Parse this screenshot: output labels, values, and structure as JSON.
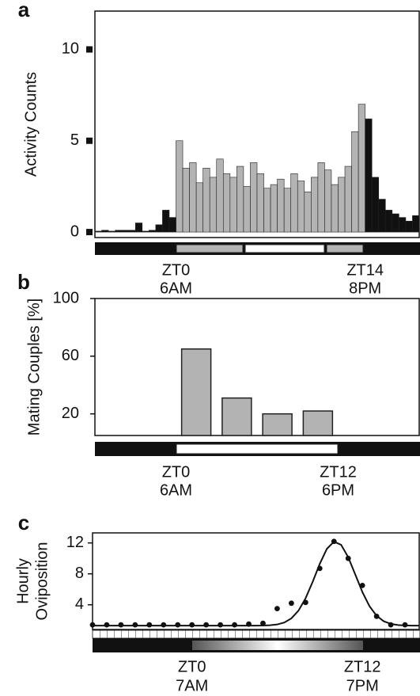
{
  "chart_data": [
    {
      "panel": "a",
      "type": "bar",
      "ylabel": "Activity Counts",
      "xlim": [
        -6,
        18
      ],
      "xticks": [
        {
          "value": 0,
          "label": "ZT0",
          "time": "6AM"
        },
        {
          "value": 14,
          "label": "ZT14",
          "time": "8PM"
        }
      ],
      "ylim": [
        -0.3,
        12.1
      ],
      "yticks": [
        0,
        5,
        10
      ],
      "series": [
        {
          "color": "#b3b3b3",
          "x": [
            0,
            0.5,
            1,
            1.5,
            2,
            2.5,
            3,
            3.5,
            4,
            4.5,
            5,
            5.5,
            6,
            6.5,
            7,
            7.5,
            8,
            8.5,
            9,
            9.5,
            10,
            10.5,
            11,
            11.5,
            12,
            12.5,
            13,
            13.5
          ],
          "values": [
            5.0,
            3.5,
            3.8,
            2.7,
            3.5,
            3.0,
            4.0,
            3.2,
            3.0,
            3.6,
            2.5,
            3.8,
            3.2,
            2.4,
            2.6,
            2.9,
            2.4,
            3.2,
            2.8,
            2.2,
            3.0,
            3.8,
            3.4,
            2.6,
            3.0,
            3.6,
            5.5,
            7.0
          ]
        },
        {
          "color": "#111111",
          "x": [
            -6,
            -5.5,
            -5,
            -4.5,
            -4,
            -3.5,
            -3,
            -2.5,
            -2,
            -1.5,
            -1,
            -0.5,
            14,
            14.5,
            15,
            15.5,
            16,
            16.5,
            17,
            17.5
          ],
          "values": [
            0.05,
            0.1,
            0.05,
            0.1,
            0.1,
            0.1,
            0.5,
            0.05,
            0.1,
            0.4,
            1.2,
            0.8,
            6.2,
            3.0,
            1.8,
            1.2,
            1.0,
            0.8,
            0.6,
            0.9
          ]
        }
      ]
    },
    {
      "panel": "b",
      "type": "bar",
      "ylabel": "Mating Couples [%]",
      "xlim": [
        -6,
        18
      ],
      "xticks": [
        {
          "value": 0,
          "label": "ZT0",
          "time": "6AM"
        },
        {
          "value": 12,
          "label": "ZT12",
          "time": "6PM"
        }
      ],
      "ylim": [
        5,
        100
      ],
      "yticks": [
        20,
        60,
        100
      ],
      "x": [
        1.5,
        4.5,
        7.5,
        10.5
      ],
      "values": [
        65,
        31,
        20,
        22
      ],
      "color": "#b3b3b3"
    },
    {
      "panel": "c",
      "type": "line",
      "ylabel": [
        "Hourly",
        "Oviposition"
      ],
      "xlim": [
        -7,
        16
      ],
      "xticks": [
        {
          "value": 0,
          "label": "ZT0",
          "time": "7AM"
        },
        {
          "value": 12,
          "label": "ZT12",
          "time": "7PM"
        }
      ],
      "ylim": [
        0.8,
        13.3
      ],
      "yticks": [
        4,
        8,
        12
      ],
      "series": [
        {
          "type": "scatter",
          "color": "#111111",
          "x": [
            -7,
            -6,
            -5,
            -4,
            -3,
            -2,
            -1,
            0,
            1,
            2,
            3,
            4,
            5,
            6,
            7,
            8,
            9,
            10,
            11,
            12,
            13,
            14,
            15
          ],
          "values": [
            1.4,
            1.4,
            1.4,
            1.4,
            1.4,
            1.4,
            1.4,
            1.4,
            1.4,
            1.4,
            1.4,
            1.5,
            1.6,
            3.5,
            4.2,
            4.3,
            8.7,
            12.2,
            10.0,
            6.5,
            2.5,
            1.4,
            1.4
          ]
        },
        {
          "type": "line",
          "color": "#111111",
          "x": [
            -7,
            4,
            4.5,
            5,
            5.5,
            6,
            6.5,
            7,
            7.5,
            8,
            8.5,
            9,
            9.5,
            10,
            10.5,
            11,
            11.5,
            12,
            12.5,
            13,
            13.5,
            14,
            14.5,
            15,
            15.5,
            16
          ],
          "values": [
            1.3,
            1.3,
            1.3,
            1.31,
            1.35,
            1.45,
            1.7,
            2.24,
            3.24,
            4.84,
            6.97,
            9.3,
            11.24,
            12.17,
            11.76,
            10.16,
            7.91,
            5.64,
            3.81,
            2.57,
            1.87,
            1.53,
            1.38,
            1.32,
            1.3,
            1.3
          ]
        }
      ]
    }
  ]
}
